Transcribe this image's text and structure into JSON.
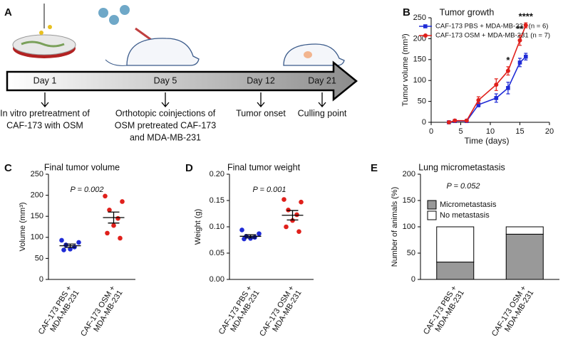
{
  "timeline": {
    "panel": "A",
    "days": [
      {
        "label": "Day 1",
        "description": [
          "In vitro pretreatment of",
          "CAF-173 with OSM"
        ]
      },
      {
        "label": "Day 5",
        "description": [
          "Orthotopic coinjections of",
          "OSM pretreated CAF-173",
          "and MDA-MB-231"
        ]
      },
      {
        "label": "Day 12",
        "description": [
          "Tumor onset"
        ]
      },
      {
        "label": "Day 21",
        "description": [
          "Culling point"
        ]
      }
    ]
  },
  "chart_data": [
    {
      "panel": "B",
      "type": "line",
      "title": "Tumor growth",
      "x_label": "Time (days)",
      "y_label": "Tumor volume (mm³)",
      "x": [
        3,
        4,
        6,
        8,
        11,
        13,
        15,
        16
      ],
      "xlim": [
        0,
        20
      ],
      "xticks": [
        0,
        5,
        10,
        15,
        20
      ],
      "ylim": [
        0,
        250
      ],
      "yticks": [
        0,
        50,
        100,
        150,
        200,
        250
      ],
      "series": [
        {
          "name": "CAF-173 PBS + MDA-MB-231 (n = 6)",
          "color": "#1f2bd6",
          "marker": "square",
          "values": [
            0,
            3,
            3,
            42,
            58,
            82,
            143,
            157
          ],
          "errors": [
            0,
            2,
            2,
            5,
            10,
            14,
            10,
            8
          ]
        },
        {
          "name": "CAF-173 OSM + MDA-MB-231 (n = 7)",
          "color": "#e0201b",
          "marker": "circle",
          "values": [
            0,
            4,
            4,
            53,
            90,
            123,
            196,
            232
          ],
          "errors": [
            0,
            2,
            2,
            8,
            14,
            10,
            12,
            6
          ]
        }
      ],
      "annotations": [
        {
          "x": 13,
          "text": "*"
        },
        {
          "x": 15,
          "text": "**"
        },
        {
          "x": 16,
          "text": "****"
        }
      ]
    },
    {
      "panel": "C",
      "type": "dot",
      "title": "Final tumor volume",
      "annotation": "P = 0.002",
      "y_label": "Volume (mm³)",
      "categories": [
        [
          "CAF-173 PBS +",
          "MDA-MB-231"
        ],
        [
          "CAF-173 OSM +",
          "MDA-MB-231"
        ]
      ],
      "ylim": [
        0,
        250
      ],
      "yticks": [
        0,
        50,
        100,
        150,
        200,
        250
      ],
      "groups": [
        {
          "color": "#1f2bd6",
          "values": [
            93,
            88,
            82,
            77,
            72,
            70
          ],
          "mean": 80,
          "sem": 4
        },
        {
          "color": "#e0201b",
          "values": [
            198,
            185,
            165,
            145,
            128,
            110,
            98
          ],
          "mean": 147,
          "sem": 13
        }
      ]
    },
    {
      "panel": "D",
      "type": "dot",
      "title": "Final tumor weight",
      "annotation": "P = 0.001",
      "y_label": "Weight (g)",
      "categories": [
        [
          "CAF-173 PBS +",
          "MDA-MB-231"
        ],
        [
          "CAF-173 OSM +",
          "MDA-MB-231"
        ]
      ],
      "ylim": [
        0,
        0.2
      ],
      "yticks": [
        {
          "value": 0,
          "label": "0.00"
        },
        {
          "value": 0.05,
          "label": "0.05"
        },
        {
          "value": 0.1,
          "label": "0.10"
        },
        {
          "value": 0.15,
          "label": "0.15"
        },
        {
          "value": 0.2,
          "label": "0.20"
        }
      ],
      "groups": [
        {
          "color": "#1f2bd6",
          "values": [
            0.094,
            0.087,
            0.082,
            0.08,
            0.078,
            0.077
          ],
          "mean": 0.082,
          "sem": 0.003
        },
        {
          "color": "#e0201b",
          "values": [
            0.152,
            0.147,
            0.132,
            0.123,
            0.112,
            0.1,
            0.091
          ],
          "mean": 0.122,
          "sem": 0.009
        }
      ]
    },
    {
      "panel": "E",
      "type": "stacked_bar",
      "title": "Lung micrometastasis",
      "annotation": "P = 0.052",
      "y_label": "Number of animals (%)",
      "categories": [
        [
          "CAF-173 PBS +",
          "MDA-MB-231"
        ],
        [
          "CAF-173 OSM +",
          "MDA-MB-231"
        ]
      ],
      "ylim": [
        0,
        200
      ],
      "yticks": [
        0,
        50,
        100,
        150,
        200
      ],
      "series": [
        {
          "name": "Micrometastasis",
          "color": "#999999",
          "values": [
            33,
            86
          ]
        },
        {
          "name": "No metastasis",
          "color": "#ffffff",
          "values": [
            67,
            14
          ]
        }
      ]
    }
  ]
}
